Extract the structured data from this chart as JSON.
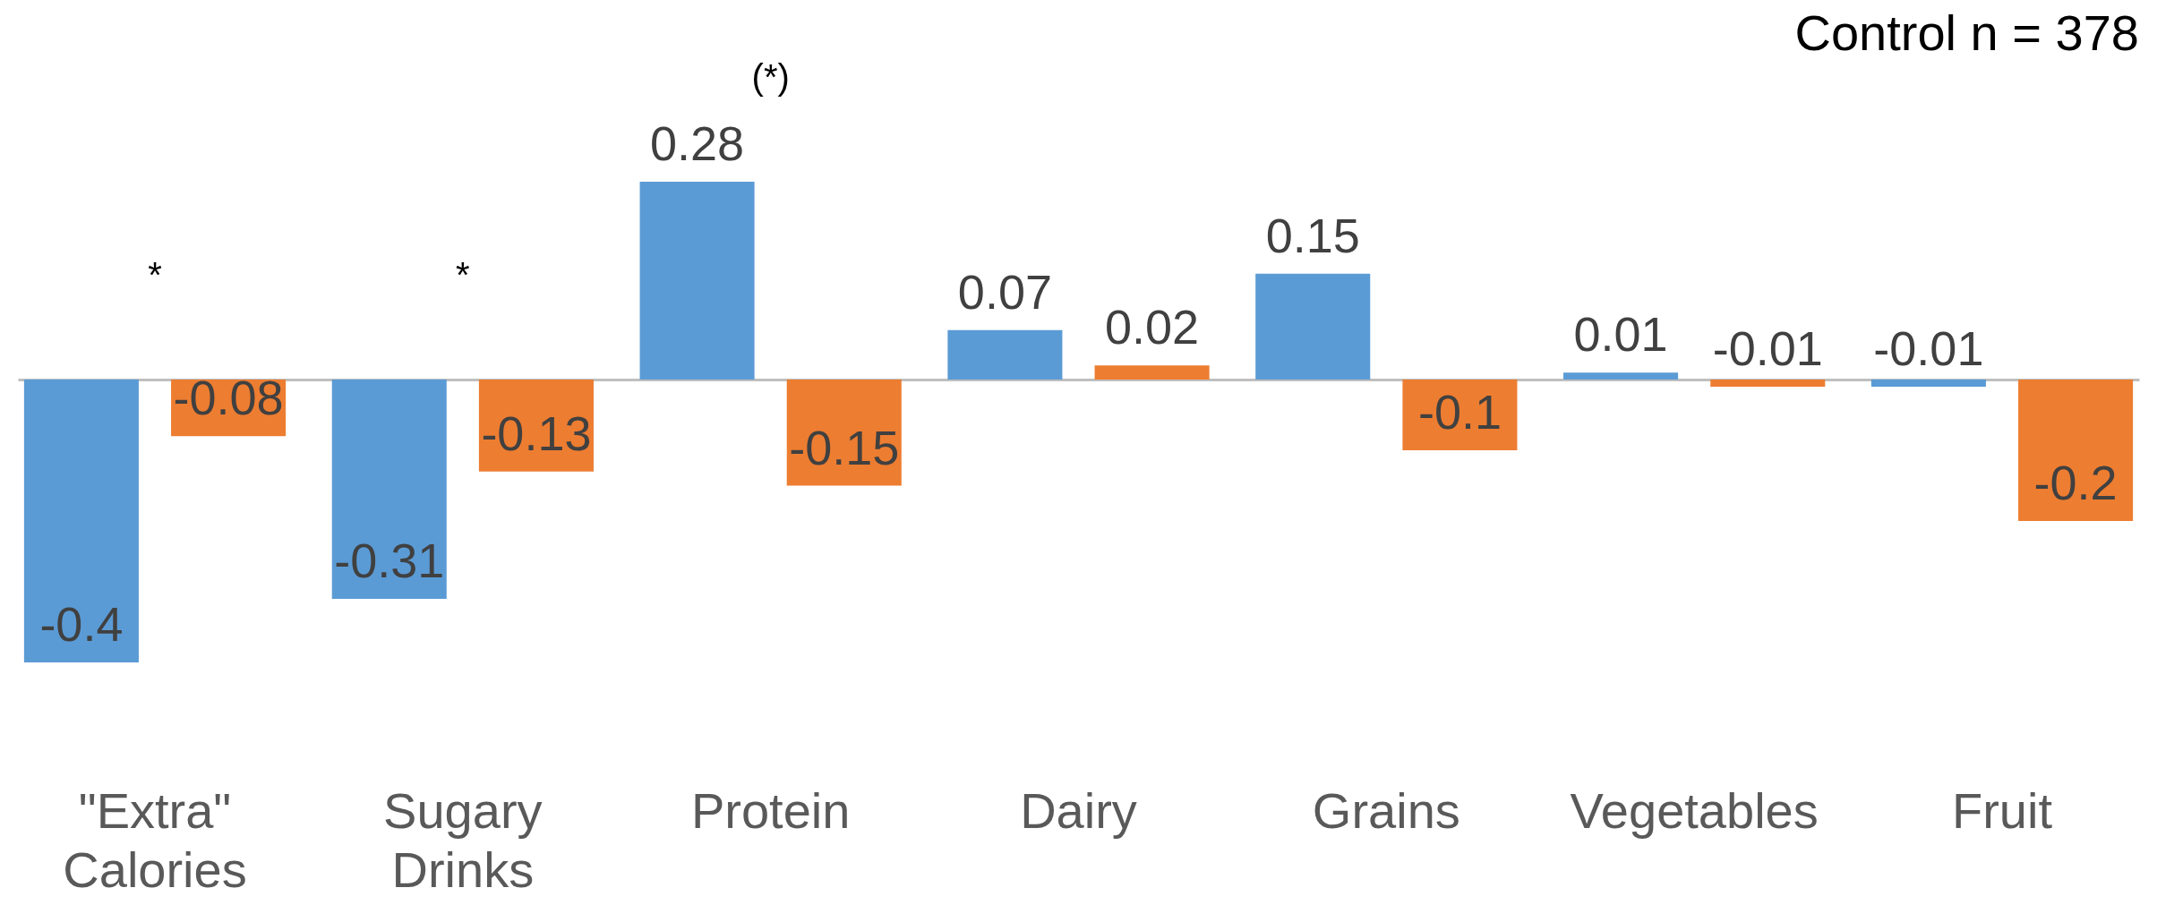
{
  "chart_data": {
    "type": "bar",
    "categories": [
      "\"Extra\" Calories",
      "Sugary Drinks",
      "Protein",
      "Dairy",
      "Grains",
      "Vegetables",
      "Fruit"
    ],
    "series": [
      {
        "color": "#5b9bd5",
        "values": [
          -0.4,
          -0.31,
          0.28,
          0.07,
          0.15,
          0.01,
          -0.01
        ]
      },
      {
        "color": "#ed7d31",
        "values": [
          -0.08,
          -0.13,
          -0.15,
          0.02,
          -0.1,
          -0.01,
          -0.2
        ]
      }
    ],
    "data_labels": true,
    "legend": false,
    "tick_labels": "x",
    "annotations": [
      "Control n = 378",
      "*",
      "*",
      "(*)"
    ]
  }
}
